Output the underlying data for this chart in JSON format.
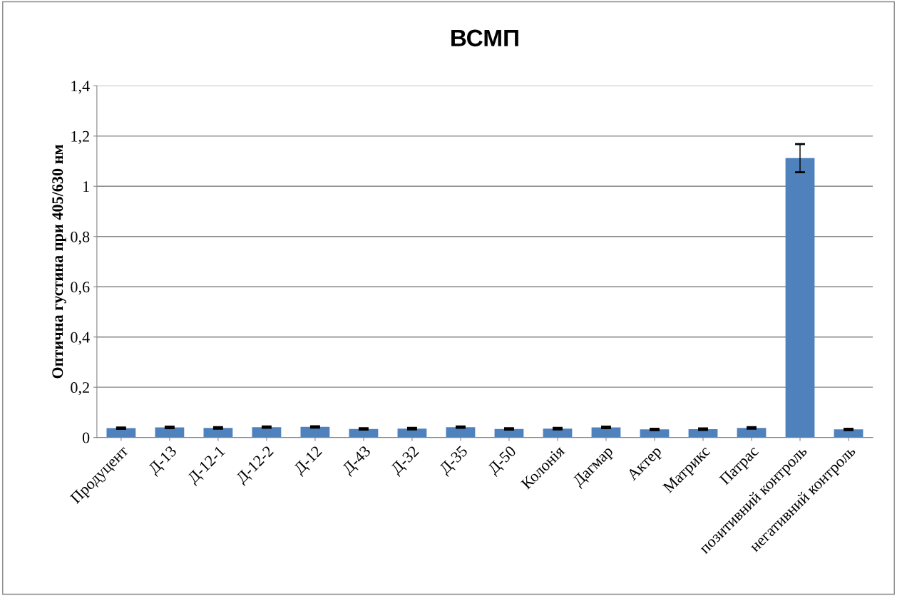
{
  "chart_data": {
    "type": "bar",
    "title": "ВСМП",
    "ylabel": "Оптична густина при 405/630 нм",
    "categories": [
      "Продуцент",
      "Д-13",
      "Д-12-1",
      "Д-12-2",
      "Д-12",
      "Д-43",
      "Д-32",
      "Д-35",
      "Д-50",
      "Колонія",
      "Дагмар",
      "Актер",
      "Матрикс",
      "Патрас",
      "позитивний контроль",
      "негативний контроль"
    ],
    "values": [
      0.037,
      0.04,
      0.038,
      0.041,
      0.042,
      0.034,
      0.035,
      0.041,
      0.034,
      0.035,
      0.04,
      0.032,
      0.033,
      0.038,
      1.112,
      0.032
    ],
    "errors": [
      0.003,
      0.003,
      0.003,
      0.003,
      0.003,
      0.003,
      0.003,
      0.003,
      0.003,
      0.003,
      0.003,
      0.003,
      0.003,
      0.003,
      0.056,
      0.003
    ],
    "color": "#4f81bd",
    "ylim": [
      0,
      1.4
    ],
    "yticks": [
      {
        "value": 0,
        "label": "0"
      },
      {
        "value": 0.2,
        "label": "0,2"
      },
      {
        "value": 0.4,
        "label": "0,4"
      },
      {
        "value": 0.6,
        "label": "0,6"
      },
      {
        "value": 0.8,
        "label": "0,8"
      },
      {
        "value": 1,
        "label": "1"
      },
      {
        "value": 1.2,
        "label": "1,2"
      },
      {
        "value": 1.4,
        "label": "1,4"
      }
    ],
    "grid": "y"
  }
}
